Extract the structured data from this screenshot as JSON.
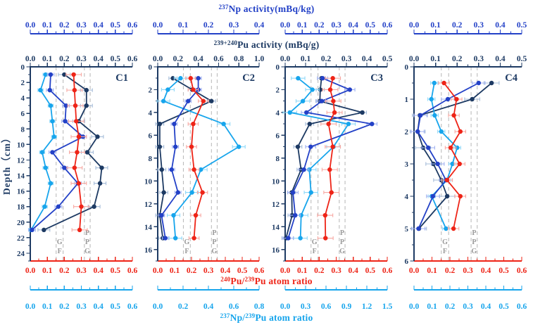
{
  "colors": {
    "np_activity": "#2341c7",
    "pu_activity": "#1d3a63",
    "pu_ratio": "#ee2417",
    "np_pu_ratio": "#17a5ec",
    "err_np_activity": "#9fb0f0",
    "err_pu_activity": "#a5bcd9",
    "err_pu_ratio": "#f7a8a2",
    "err_np_pu_ratio": "#8fd8f8",
    "ref_line": "#bdbdbd",
    "ref_text": "#9a9a9a"
  },
  "ylabel": "Depth（cm）",
  "chart_data": {
    "type": "line",
    "titles": {
      "np_activity": [
        {
          "sup": "237"
        },
        {
          "t": "Np activity(mBq/kg)"
        }
      ],
      "pu_activity": [
        {
          "sup": "239+240"
        },
        {
          "t": "Pu activity (mBq/g)"
        }
      ],
      "pu_ratio": [
        {
          "sup": "240"
        },
        {
          "t": "Pu/"
        },
        {
          "sup": "239"
        },
        {
          "t": "Pu atom ratio"
        }
      ],
      "np_pu_ratio": [
        {
          "sup": "237"
        },
        {
          "t": "Np/"
        },
        {
          "sup": "239"
        },
        {
          "t": "Pu atom ratio"
        }
      ]
    },
    "reference_lines": {
      "axis": "pu_ratio",
      "values": [
        0.152,
        0.193,
        0.318,
        0.352
      ],
      "left_letters": [
        "G",
        "F"
      ],
      "right_letters": [
        "P",
        "P",
        "G"
      ]
    },
    "panels": [
      {
        "label": "C1",
        "depth": {
          "plot_max": 25,
          "label_max": 24,
          "label_step": 2
        },
        "axes": {
          "np_activity": {
            "min": 0,
            "max": 0.6,
            "step": 0.1
          },
          "pu_activity": {
            "min": 0,
            "max": 0.6,
            "step": 0.1
          },
          "pu_ratio": {
            "min": 0,
            "max": 0.6,
            "step": 0.1
          },
          "np_pu_ratio": {
            "min": 0,
            "max": 0.6,
            "step": 0.1
          }
        },
        "series": {
          "depths": [
            1,
            3,
            5,
            7,
            9,
            11,
            13,
            15,
            18,
            21
          ],
          "pu_activity": {
            "values": [
              0.2,
              0.33,
              0.33,
              0.285,
              0.395,
              0.335,
              0.42,
              0.41,
              0.375,
              0.08
            ],
            "err": 0.035
          },
          "np_activity": {
            "values": [
              0.12,
              0.115,
              0.21,
              0.205,
              0.31,
              0.13,
              0.2,
              0.28,
              0.165,
              0.01
            ],
            "err": 0.02
          },
          "pu_ratio": {
            "values": [
              0.255,
              0.26,
              0.265,
              0.27,
              0.285,
              0.275,
              0.26,
              0.285,
              0.3,
              0.29
            ],
            "err": 0.045
          },
          "np_pu_ratio": {
            "values": [
              0.09,
              0.06,
              0.12,
              0.13,
              0.14,
              0.07,
              0.09,
              0.12,
              0.085,
              0.005
            ],
            "err": 0.015
          }
        }
      },
      {
        "label": "C2",
        "depth": {
          "plot_max": 17,
          "label_max": 16,
          "label_step": 2
        },
        "axes": {
          "np_activity": {
            "min": 0,
            "max": 0.4,
            "step": 0.1
          },
          "pu_activity": {
            "min": 0,
            "max": 1.0,
            "step": 0.2
          },
          "pu_ratio": {
            "min": 0,
            "max": 0.6,
            "step": 0.1
          },
          "np_pu_ratio": {
            "min": 0,
            "max": 0.8,
            "step": 0.2
          }
        },
        "series": {
          "depths": [
            1,
            2,
            3,
            5,
            7,
            9,
            11,
            13,
            15
          ],
          "pu_activity": {
            "values": [
              0.15,
              0.34,
              0.53,
              0.02,
              0.02,
              0.04,
              0.06,
              0.02,
              0.05
            ],
            "err": 0.04
          },
          "np_activity": {
            "values": [
              0.16,
              0.16,
              0.12,
              0.065,
              0.07,
              0.055,
              0.08,
              0.015,
              0.03
            ],
            "err": 0.012
          },
          "pu_ratio": {
            "values": [
              0.195,
              0.21,
              0.27,
              0.21,
              0.2,
              0.215,
              0.265,
              0.225,
              0.215
            ],
            "err": 0.03
          },
          "np_pu_ratio": {
            "values": [
              0.18,
              0.08,
              0.045,
              0.52,
              0.64,
              0.34,
              0.27,
              0.125,
              0.14
            ],
            "err": 0.05
          }
        }
      },
      {
        "label": "C3",
        "depth": {
          "plot_max": 17,
          "label_max": 16,
          "label_step": 2
        },
        "axes": {
          "np_activity": {
            "min": 0,
            "max": 0.6,
            "step": 0.1
          },
          "pu_activity": {
            "min": 0,
            "max": 0.5,
            "step": 0.1
          },
          "pu_ratio": {
            "min": 0,
            "max": 0.6,
            "step": 0.1
          },
          "np_pu_ratio": {
            "min": 0,
            "max": 1.5,
            "step": 0.3
          }
        },
        "series": {
          "depths": [
            1,
            2,
            3,
            4,
            5,
            7,
            9,
            11,
            13,
            15
          ],
          "pu_activity": {
            "values": [
              0.178,
              0.172,
              0.17,
              0.378,
              0.12,
              0.062,
              0.078,
              0.032,
              0.034,
              0.004
            ],
            "err": 0.02
          },
          "np_activity": {
            "values": [
              0.22,
              0.38,
              0.215,
              0.125,
              0.51,
              0.15,
              0.11,
              0.046,
              0.059,
              0.018
            ],
            "err": 0.03
          },
          "pu_ratio": {
            "values": [
              0.28,
              0.265,
              0.283,
              0.29,
              0.255,
              0.28,
              0.262,
              0.272,
              0.235,
              0.237
            ],
            "err": 0.045
          },
          "np_pu_ratio": {
            "values": [
              0.19,
              0.4,
              0.26,
              0.07,
              0.93,
              0.71,
              0.355,
              0.38,
              0.235,
              0.224
            ],
            "err": 0.1
          }
        }
      },
      {
        "label": "C4",
        "depth": {
          "plot_max": 6,
          "label_max": 6,
          "label_step": 1
        },
        "axes": {
          "np_activity": {
            "min": 0,
            "max": 0.5,
            "step": 0.1
          },
          "pu_activity": {
            "min": 0,
            "max": 0.5,
            "step": 0.1
          },
          "pu_ratio": {
            "min": 0,
            "max": 0.6,
            "step": 0.1
          },
          "np_pu_ratio": {
            "min": 0,
            "max": 0.6,
            "step": 0.1
          }
        },
        "series": {
          "depths": [
            0.5,
            1,
            1.5,
            2,
            2.5,
            3,
            3.5,
            4,
            5
          ],
          "pu_activity": {
            "values": [
              0.36,
              0.27,
              0.027,
              0.017,
              0.042,
              0.09,
              0.126,
              0.154,
              0.023
            ],
            "err": 0.035
          },
          "np_activity": {
            "values": [
              0.3,
              0.157,
              0.03,
              0.017,
              0.066,
              0.11,
              0.148,
              0.088,
              0.021
            ],
            "err": 0.03
          },
          "pu_ratio": {
            "values": [
              0.167,
              0.237,
              0.222,
              0.258,
              0.204,
              0.254,
              0.184,
              0.258,
              0.22
            ],
            "err": 0.03
          },
          "np_pu_ratio": {
            "values": [
              0.113,
              0.097,
              0.115,
              0.152,
              0.24,
              0.214,
              0.184,
              0.099,
              0.178
            ],
            "err": 0.02
          }
        }
      }
    ]
  }
}
